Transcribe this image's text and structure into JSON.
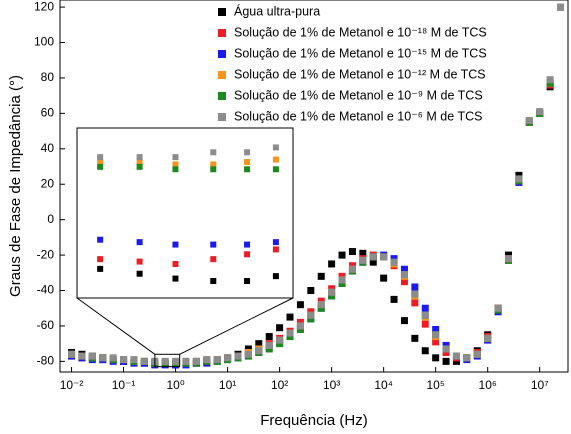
{
  "chart_data": {
    "type": "scatter",
    "x_label": "Frequência (Hz)",
    "y_label": "Graus de Fase de Impedância (°)",
    "xscale": "log",
    "legend": "upper right",
    "xlim": [
      0.006,
      35000000
    ],
    "ylim": [
      -86,
      124
    ],
    "xticks": [
      {
        "value": 0.01,
        "label": "10⁻²"
      },
      {
        "value": 0.1,
        "label": "10⁻¹"
      },
      {
        "value": 1,
        "label": "10⁰"
      },
      {
        "value": 10,
        "label": "10¹"
      },
      {
        "value": 100,
        "label": "10²"
      },
      {
        "value": 1000,
        "label": "10³"
      },
      {
        "value": 10000,
        "label": "10⁴"
      },
      {
        "value": 100000,
        "label": "10⁵"
      },
      {
        "value": 1000000,
        "label": "10⁶"
      },
      {
        "value": 10000000,
        "label": "10⁷"
      }
    ],
    "yticks": [
      -80,
      -60,
      -40,
      -20,
      0,
      20,
      40,
      60,
      80,
      100,
      120
    ],
    "x": [
      0.01,
      0.01585,
      0.02512,
      0.03981,
      0.0631,
      0.1,
      0.1585,
      0.2512,
      0.3981,
      0.631,
      1,
      1.585,
      2.512,
      3.981,
      6.31,
      10,
      15.85,
      25.12,
      39.81,
      63.1,
      100,
      158.5,
      251.2,
      398.1,
      631,
      1000,
      1585,
      2512,
      3981,
      6310,
      10000,
      15850,
      25120,
      39810,
      63100,
      100000,
      158500,
      251200,
      398100,
      631000,
      1000000,
      1585000,
      2512000,
      3981000,
      6310000,
      10000000,
      15850000,
      25120000
    ],
    "series": [
      {
        "name": "Água ultra-pura",
        "color": "#000000",
        "values": [
          -75,
          -76,
          -77,
          -78,
          -79,
          -80,
          -80,
          -81,
          -81,
          -81,
          -82,
          -81,
          -81,
          -80,
          -79,
          -78,
          -76,
          -73,
          -70,
          -66,
          -61,
          -55,
          -48,
          -40,
          -32,
          -25,
          -20,
          -18,
          -19,
          -24,
          -33,
          -45,
          -57,
          -67,
          -74,
          -78,
          -80,
          -80,
          -78,
          -74,
          -65,
          -50,
          -20,
          25,
          55,
          60,
          75,
          120
        ]
      },
      {
        "name": "Solução de 1% de Metanol e 10⁻¹⁸ M de TCS",
        "color": "#ee1c24",
        "values": [
          -77,
          -78,
          -78,
          -79,
          -79,
          -80,
          -80,
          -80,
          -81,
          -81,
          -81,
          -81,
          -80,
          -80,
          -79,
          -78,
          -77,
          -75,
          -73,
          -70,
          -67,
          -63,
          -58,
          -52,
          -46,
          -39,
          -32,
          -26,
          -22,
          -20,
          -21,
          -26,
          -35,
          -47,
          -59,
          -69,
          -75,
          -78,
          -78,
          -75,
          -66,
          -50,
          -22,
          22,
          55,
          60,
          76,
          120
        ]
      },
      {
        "name": "Solução de 1% de Metanol e 10⁻¹⁵ M de TCS",
        "color": "#1a1aee",
        "values": [
          -77,
          -78,
          -79,
          -79,
          -80,
          -80,
          -81,
          -81,
          -82,
          -82,
          -82,
          -82,
          -81,
          -81,
          -80,
          -79,
          -78,
          -77,
          -75,
          -72,
          -69,
          -65,
          -61,
          -56,
          -50,
          -43,
          -36,
          -29,
          -24,
          -21,
          -20,
          -22,
          -28,
          -38,
          -50,
          -62,
          -71,
          -77,
          -79,
          -77,
          -68,
          -52,
          -23,
          21,
          55,
          60,
          77,
          120
        ]
      },
      {
        "name": "Solução de 1% de Metanol e 10⁻¹² M de TCS",
        "color": "#f7941d",
        "values": [
          -76,
          -77,
          -78,
          -78,
          -79,
          -79,
          -80,
          -80,
          -80,
          -81,
          -81,
          -80,
          -80,
          -79,
          -79,
          -78,
          -77,
          -75,
          -73,
          -71,
          -68,
          -64,
          -60,
          -54,
          -48,
          -41,
          -34,
          -28,
          -23,
          -21,
          -21,
          -25,
          -32,
          -43,
          -55,
          -66,
          -73,
          -77,
          -78,
          -76,
          -67,
          -51,
          -23,
          22,
          55,
          60,
          77,
          120
        ]
      },
      {
        "name": "Solução de 1% de Metanol e 10⁻⁹ M de TCS",
        "color": "#1e8a1e",
        "values": [
          -76,
          -77,
          -78,
          -78,
          -79,
          -79,
          -80,
          -80,
          -81,
          -81,
          -81,
          -81,
          -81,
          -80,
          -80,
          -79,
          -78,
          -77,
          -75,
          -73,
          -70,
          -66,
          -62,
          -56,
          -50,
          -43,
          -36,
          -29,
          -24,
          -21,
          -21,
          -24,
          -31,
          -42,
          -54,
          -65,
          -73,
          -77,
          -78,
          -76,
          -67,
          -51,
          -23,
          22,
          55,
          60,
          77,
          120
        ]
      },
      {
        "name": "Solução de 1% de Metanol e 10⁻⁶ M de TCS",
        "color": "#8c8c8c",
        "values": [
          -76,
          -77,
          -77,
          -78,
          -78,
          -79,
          -79,
          -80,
          -80,
          -80,
          -80,
          -80,
          -80,
          -79,
          -79,
          -78,
          -77,
          -76,
          -74,
          -71,
          -68,
          -64,
          -60,
          -54,
          -48,
          -41,
          -34,
          -28,
          -23,
          -21,
          -21,
          -24,
          -31,
          -42,
          -54,
          -65,
          -73,
          -77,
          -78,
          -76,
          -67,
          -50,
          -22,
          23,
          56,
          61,
          79,
          120
        ]
      }
    ],
    "inset": {
      "xlim": [
        0.4,
        1.2
      ],
      "ylim": [
        -83,
        -76
      ],
      "x": [
        0.45,
        0.55,
        0.66,
        0.8,
        0.95,
        1.1
      ],
      "values": [
        [
          -81.8,
          -82.0,
          -82.2,
          -82.3,
          -82.3,
          -82.1
        ],
        [
          -81.4,
          -81.5,
          -81.6,
          -81.4,
          -81.2,
          -81.0
        ],
        [
          -80.6,
          -80.7,
          -80.8,
          -80.8,
          -80.8,
          -80.7
        ],
        [
          -77.4,
          -77.4,
          -77.5,
          -77.5,
          -77.4,
          -77.3
        ],
        [
          -77.6,
          -77.6,
          -77.7,
          -77.7,
          -77.7,
          -77.7
        ],
        [
          -77.2,
          -77.2,
          -77.2,
          -77.0,
          -77.0,
          -76.8
        ]
      ]
    }
  }
}
